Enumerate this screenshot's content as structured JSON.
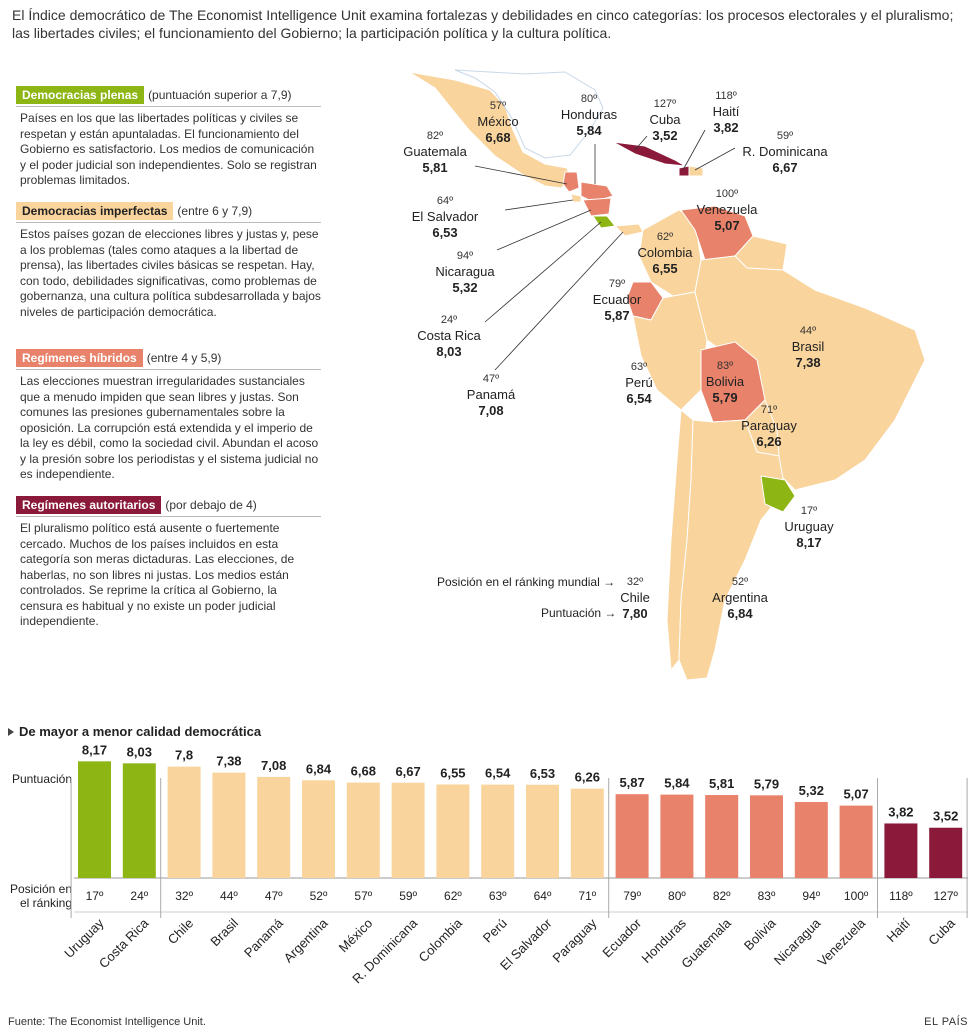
{
  "intro": "El Índice democrático de The Economist Intelligence Unit examina fortalezas y debilidades en cinco categorías: los procesos electorales y el pluralismo; las libertades civiles; el funcionamiento del Gobierno; la participación política y la cultura política.",
  "legend": [
    {
      "label": "Democracias plenas",
      "range": "(puntuación superior a 7,9)",
      "color": "#8db514",
      "desc": "Países en los que las libertades políticas y civiles se respetan y están apuntaladas. El funcionamiento del Gobierno es satisfactorio. Los medios de comunicación y el poder judicial son independientes. Solo se registran problemas limitados."
    },
    {
      "label": "Democracias imperfectas",
      "range": "(entre 6 y 7,9)",
      "color": "#f9d49c",
      "desc": "Estos países gozan de elecciones libres y justas y, pese a los problemas (tales como ataques a la libertad de prensa), las libertades civiles básicas se respetan. Hay, con todo, debilidades significativas, como problemas de gobernanza, una cultura política subdesarrollada y bajos niveles de participación democrática."
    },
    {
      "label": "Regímenes híbridos",
      "range": "(entre 4 y 5,9)",
      "color": "#e8826a",
      "desc": "Las elecciones muestran irregularidades sustanciales que a menudo impiden que sean libres y justas. Son comunes las presiones gubernamentales sobre la oposición. La corrupción está extendida y el imperio de la ley es débil, como la sociedad civil.  Abundan el acoso y la presión sobre los periodistas y el sistema judicial no es independiente."
    },
    {
      "label": "Regímenes autoritarios",
      "range": "(por debajo de 4)",
      "color": "#8b1a3a",
      "desc": "El pluralismo político está ausente o fuertemente cercado. Muchos de los países incluidos en esta categoría son meras dictaduras. Las elecciones, de haberlas, no son libres ni justas. Los medios están controlados. Se reprime la crítica al Gobierno, la censura es habitual y no existe un poder judicial independiente."
    }
  ],
  "map_labels": [
    {
      "rank": "57º",
      "name": "México",
      "score": "6,68"
    },
    {
      "rank": "80º",
      "name": "Honduras",
      "score": "5,84"
    },
    {
      "rank": "127º",
      "name": "Cuba",
      "score": "3,52"
    },
    {
      "rank": "118º",
      "name": "Haití",
      "score": "3,82"
    },
    {
      "rank": "59º",
      "name": "R. Dominicana",
      "score": "6,67"
    },
    {
      "rank": "82º",
      "name": "Guatemala",
      "score": "5,81"
    },
    {
      "rank": "64º",
      "name": "El Salvador",
      "score": "6,53"
    },
    {
      "rank": "94º",
      "name": "Nicaragua",
      "score": "5,32"
    },
    {
      "rank": "24º",
      "name": "Costa Rica",
      "score": "8,03"
    },
    {
      "rank": "47º",
      "name": "Panamá",
      "score": "7,08"
    },
    {
      "rank": "100º",
      "name": "Venezuela",
      "score": "5,07"
    },
    {
      "rank": "62º",
      "name": "Colombia",
      "score": "6,55"
    },
    {
      "rank": "79º",
      "name": "Ecuador",
      "score": "5,87"
    },
    {
      "rank": "44º",
      "name": "Brasil",
      "score": "7,38"
    },
    {
      "rank": "63º",
      "name": "Perú",
      "score": "6,54"
    },
    {
      "rank": "83º",
      "name": "Bolivia",
      "score": "5,79"
    },
    {
      "rank": "71º",
      "name": "Paraguay",
      "score": "6,26"
    },
    {
      "rank": "17º",
      "name": "Uruguay",
      "score": "8,17"
    },
    {
      "rank": "32º",
      "name": "Chile",
      "score": "7,80"
    },
    {
      "rank": "52º",
      "name": "Argentina",
      "score": "6,84"
    }
  ],
  "map_key": {
    "rank_label": "Posición en el ránking mundial",
    "score_label": "Puntuación"
  },
  "chart_data": {
    "type": "bar",
    "title": "De mayor a menor calidad democrática",
    "ylabel": "Puntuación",
    "rank_label": "Posición en el ránking",
    "categories": [
      "Uruguay",
      "Costa Rica",
      "Chile",
      "Brasil",
      "Panamá",
      "Argentina",
      "México",
      "R. Dominicana",
      "Colombia",
      "Perú",
      "El Salvador",
      "Paraguay",
      "Ecuador",
      "Honduras",
      "Guatemala",
      "Bolivia",
      "Nicaragua",
      "Venezuela",
      "Haití",
      "Cuba"
    ],
    "values": [
      8.17,
      8.03,
      7.8,
      7.38,
      7.08,
      6.84,
      6.68,
      6.67,
      6.55,
      6.54,
      6.53,
      6.26,
      5.87,
      5.84,
      5.81,
      5.79,
      5.32,
      5.07,
      3.82,
      3.52
    ],
    "value_labels": [
      "8,17",
      "8,03",
      "7,8",
      "7,38",
      "7,08",
      "6,84",
      "6,68",
      "6,67",
      "6,55",
      "6,54",
      "6,53",
      "6,26",
      "5,87",
      "5,84",
      "5,81",
      "5,79",
      "5,32",
      "5,07",
      "3,82",
      "3,52"
    ],
    "ranks": [
      "17º",
      "24º",
      "32º",
      "44º",
      "47º",
      "52º",
      "57º",
      "59º",
      "62º",
      "63º",
      "64º",
      "71º",
      "79º",
      "80º",
      "82º",
      "83º",
      "94º",
      "100º",
      "118º",
      "127º"
    ],
    "groups": [
      "plena",
      "plena",
      "imperfecta",
      "imperfecta",
      "imperfecta",
      "imperfecta",
      "imperfecta",
      "imperfecta",
      "imperfecta",
      "imperfecta",
      "imperfecta",
      "imperfecta",
      "hibrido",
      "hibrido",
      "hibrido",
      "hibrido",
      "hibrido",
      "hibrido",
      "autoritario",
      "autoritario"
    ],
    "group_colors": {
      "plena": "#8db514",
      "imperfecta": "#f9d49c",
      "hibrido": "#e8826a",
      "autoritario": "#8b1a3a"
    },
    "ylim": [
      0,
      10
    ]
  },
  "footer": {
    "source": "Fuente: The Economist Intelligence Unit.",
    "brand": "EL PAÍS"
  }
}
